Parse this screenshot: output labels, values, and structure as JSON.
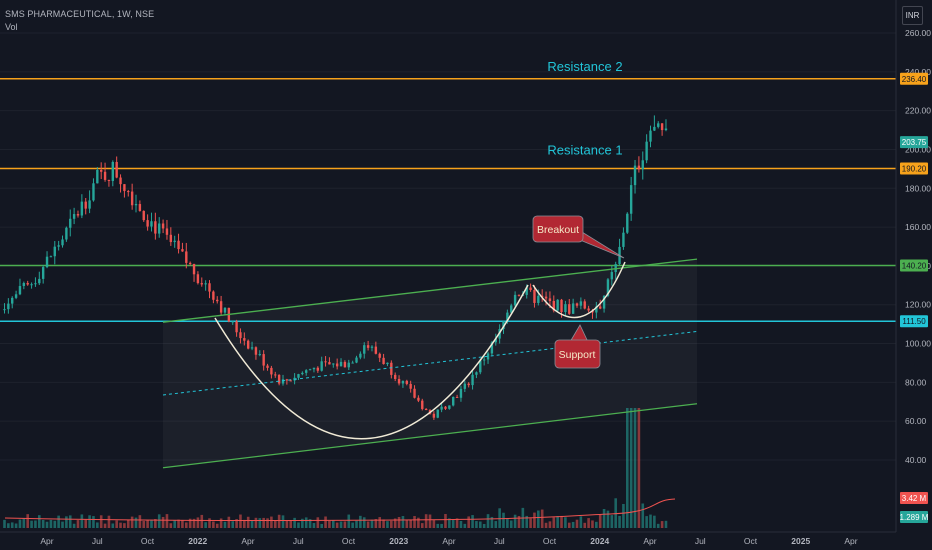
{
  "header": {
    "symbol": "SMS PHARMACEUTICAL, 1W, NSE",
    "indicator": "Vol",
    "currency": "INR"
  },
  "colors": {
    "background": "#131722",
    "up": "#26a69a",
    "down": "#ef5350",
    "resistance": "#f7a21b",
    "support_line": "#22c5d8",
    "channel": "#4caf50",
    "cup": "#f0ead6",
    "annotation_fill": "#b22833"
  },
  "chart_data": {
    "type": "candlestick",
    "title": "",
    "y_axis": {
      "ticks": [
        "260.00",
        "240.00",
        "220.00",
        "200.00",
        "180.00",
        "160.00",
        "140.00",
        "120.00",
        "100.00",
        "80.00",
        "60.00",
        "40.00"
      ],
      "range": [
        32,
        262
      ],
      "position": "right"
    },
    "x_axis": {
      "ticks": [
        "Apr",
        "Jul",
        "Oct",
        "2022",
        "Apr",
        "Jul",
        "Oct",
        "2023",
        "Apr",
        "Jul",
        "Oct",
        "2024",
        "Apr",
        "Jul",
        "Oct",
        "2025",
        "Apr"
      ]
    },
    "price_path": [
      [
        "2021-01",
        118
      ],
      [
        "2021-03",
        130
      ],
      [
        "2021-05",
        155
      ],
      [
        "2021-07",
        185
      ],
      [
        "2021-08",
        190
      ],
      [
        "2021-10",
        165
      ],
      [
        "2021-12",
        145
      ],
      [
        "2022-02",
        125
      ],
      [
        "2022-03",
        110
      ],
      [
        "2022-04",
        100
      ],
      [
        "2022-06",
        80
      ],
      [
        "2022-08",
        88
      ],
      [
        "2022-10",
        90
      ],
      [
        "2022-11",
        100
      ],
      [
        "2022-12",
        92
      ],
      [
        "2023-02",
        72
      ],
      [
        "2023-03",
        62
      ],
      [
        "2023-05",
        78
      ],
      [
        "2023-07",
        105
      ],
      [
        "2023-08",
        128
      ],
      [
        "2023-09",
        124
      ],
      [
        "2023-11",
        118
      ],
      [
        "2024-01",
        120
      ],
      [
        "2024-02",
        140
      ],
      [
        "2024-03",
        185
      ],
      [
        "2024-04",
        210
      ],
      [
        "2024-05",
        205
      ]
    ],
    "horizontal_levels": [
      {
        "label": "236.40",
        "value": 236.4,
        "color": "#f7a21b",
        "text": "Resistance 2"
      },
      {
        "label": "190.20",
        "value": 190.2,
        "color": "#f7a21b",
        "text": "Resistance 1"
      },
      {
        "label": "140.20",
        "value": 140.2,
        "color": "#4caf50",
        "text": ""
      },
      {
        "label": "111.50",
        "value": 111.5,
        "color": "#22c5d8",
        "text": ""
      }
    ],
    "last_price": {
      "label": "203.75",
      "value": 203.75
    },
    "annotations": [
      {
        "text": "Resistance 2"
      },
      {
        "text": "Resistance 1"
      },
      {
        "text": "Breakout"
      },
      {
        "text": "Support"
      }
    ],
    "volume": {
      "labels": [
        "3.42 M",
        "1.289 M"
      ]
    },
    "grid": false
  }
}
